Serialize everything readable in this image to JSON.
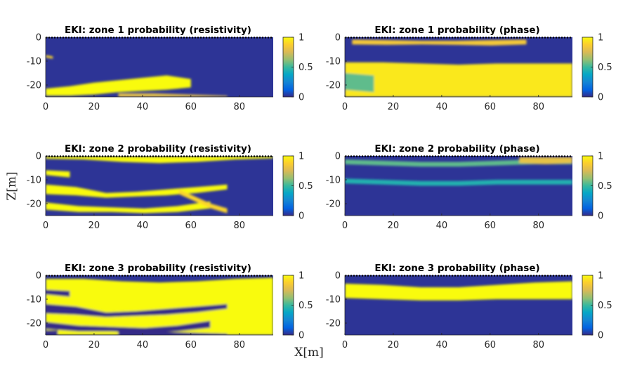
{
  "figure": {
    "xlabel": "X[m]",
    "ylabel": "Z[m]"
  },
  "colors": {
    "low": "#3e26a8",
    "mid": "#12bec0",
    "high": "#f9fb0e"
  },
  "chart_data": [
    {
      "type": "heatmap",
      "title": "EKI: zone 1 probability (resistivity)",
      "x_range": [
        0,
        94
      ],
      "y_range": [
        -25,
        0
      ],
      "x_ticks": [
        "0",
        "20",
        "40",
        "60",
        "80"
      ],
      "y_ticks": [
        "0",
        "-10",
        "-20"
      ],
      "colorbar": {
        "range": [
          0,
          1
        ],
        "ticks": [
          "0",
          "0.5",
          "1"
        ]
      },
      "regions": [
        {
          "shape": "band",
          "x": [
            0,
            60
          ],
          "top": [
            -21.5,
            -20.5,
            -19,
            -18,
            -17,
            -16,
            -17.5
          ],
          "bottom": [
            -24.5,
            -24.5,
            -24,
            -23,
            -22.5,
            -22,
            -21
          ],
          "value": 1.0
        },
        {
          "shape": "band",
          "x": [
            30,
            75
          ],
          "top": [
            -23.5,
            -23.5,
            -24,
            -24.5
          ],
          "bottom": [
            -25,
            -25,
            -25,
            -25
          ],
          "value": 0.8
        },
        {
          "shape": "band",
          "x": [
            0,
            3
          ],
          "top": [
            -7.5,
            -8
          ],
          "bottom": [
            -8.5,
            -9
          ],
          "value": 0.9
        }
      ]
    },
    {
      "type": "heatmap",
      "title": "EKI: zone 1 probability (phase)",
      "x_range": [
        0,
        94
      ],
      "y_range": [
        -25,
        0
      ],
      "x_ticks": [
        "0",
        "20",
        "40",
        "60",
        "80"
      ],
      "y_ticks": [
        "0",
        "-10",
        "-20"
      ],
      "colorbar": {
        "range": [
          0,
          1
        ],
        "ticks": [
          "0",
          "0.5",
          "1"
        ]
      },
      "regions": [
        {
          "shape": "band",
          "x": [
            0,
            94
          ],
          "top": [
            -10.5,
            -10.5,
            -11,
            -11.5,
            -11,
            -11,
            -11
          ],
          "bottom": [
            -25,
            -25,
            -25,
            -25,
            -25,
            -25,
            -25
          ],
          "value": 0.95
        },
        {
          "shape": "band",
          "x": [
            3,
            75
          ],
          "top": [
            -1,
            -1.2,
            -1.5,
            -1.5,
            -1.2,
            -1
          ],
          "bottom": [
            -3,
            -3.2,
            -3,
            -3.2,
            -3.5,
            -3
          ],
          "value": 0.85
        },
        {
          "shape": "band",
          "x": [
            0,
            12
          ],
          "top": [
            -15,
            -16
          ],
          "bottom": [
            -22,
            -23
          ],
          "value": 0.55
        }
      ]
    },
    {
      "type": "heatmap",
      "title": "EKI: zone 2 probability (resistivity)",
      "x_range": [
        0,
        94
      ],
      "y_range": [
        -25,
        0
      ],
      "x_ticks": [
        "0",
        "20",
        "40",
        "60",
        "80"
      ],
      "y_ticks": [
        "0",
        "-10",
        "-20"
      ],
      "colorbar": {
        "range": [
          0,
          1
        ],
        "ticks": [
          "0",
          "0.5",
          "1"
        ]
      },
      "regions": [
        {
          "shape": "band",
          "x": [
            0,
            94
          ],
          "top": [
            -0.2,
            -0.2,
            -0.2,
            -0.2,
            -0.2,
            -0.2,
            -0.2
          ],
          "bottom": [
            -1.2,
            -1.5,
            -2.5,
            -3,
            -2.5,
            -1.5,
            -1
          ],
          "value": 1.0
        },
        {
          "shape": "band",
          "x": [
            0,
            10
          ],
          "top": [
            -6,
            -6.5
          ],
          "bottom": [
            -8,
            -9
          ],
          "value": 1.0
        },
        {
          "shape": "band",
          "x": [
            0,
            75
          ],
          "top": [
            -12,
            -13,
            -15.5,
            -15,
            -14,
            -13,
            -12
          ],
          "bottom": [
            -16,
            -16.5,
            -17.5,
            -17,
            -16.5,
            -15.5,
            -14
          ],
          "value": 1.0
        },
        {
          "shape": "band",
          "x": [
            0,
            68
          ],
          "top": [
            -19.5,
            -21,
            -21.5,
            -22,
            -21,
            -19
          ],
          "bottom": [
            -22.5,
            -23.5,
            -23.5,
            -24,
            -23.5,
            -22
          ],
          "value": 1.0
        },
        {
          "shape": "band",
          "x": [
            55,
            75
          ],
          "top": [
            -14,
            -17,
            -20,
            -22
          ],
          "bottom": [
            -16,
            -19,
            -22,
            -24
          ],
          "value": 0.9
        }
      ]
    },
    {
      "type": "heatmap",
      "title": "EKI: zone 2 probability (phase)",
      "x_range": [
        0,
        94
      ],
      "y_range": [
        -25,
        0
      ],
      "x_ticks": [
        "0",
        "20",
        "40",
        "60",
        "80"
      ],
      "y_ticks": [
        "0",
        "-10",
        "-20"
      ],
      "colorbar": {
        "range": [
          0,
          1
        ],
        "ticks": [
          "0",
          "0.5",
          "1"
        ]
      },
      "regions": [
        {
          "shape": "band",
          "x": [
            0,
            94
          ],
          "top": [
            -1.5,
            -2,
            -2.5,
            -2.5,
            -2,
            -1.5,
            -1.5
          ],
          "bottom": [
            -3.5,
            -4,
            -4.5,
            -4.5,
            -4,
            -3.5,
            -3.5
          ],
          "value": 0.55
        },
        {
          "shape": "band",
          "x": [
            0,
            94
          ],
          "top": [
            -9.5,
            -10,
            -10.5,
            -10.5,
            -10,
            -10,
            -10
          ],
          "bottom": [
            -11.5,
            -12,
            -12.5,
            -12.5,
            -12,
            -12,
            -12
          ],
          "value": 0.45
        },
        {
          "shape": "band",
          "x": [
            72,
            94
          ],
          "top": [
            -0.5,
            -0.5,
            -0.5
          ],
          "bottom": [
            -3,
            -3.5,
            -3
          ],
          "value": 0.8
        }
      ]
    },
    {
      "type": "heatmap",
      "title": "EKI: zone 3 probability (resistivity)",
      "x_range": [
        0,
        94
      ],
      "y_range": [
        -25,
        0
      ],
      "x_ticks": [
        "0",
        "20",
        "40",
        "60",
        "80"
      ],
      "y_ticks": [
        "0",
        "-10",
        "-20"
      ],
      "colorbar": {
        "range": [
          0,
          1
        ],
        "ticks": [
          "0",
          "0.5",
          "1"
        ]
      },
      "regions": [
        {
          "shape": "band",
          "x": [
            0,
            94
          ],
          "top": [
            -1.5,
            -1.5,
            -2.5,
            -3,
            -2.5,
            -1.5,
            -1
          ],
          "bottom": [
            -25,
            -25,
            -25,
            -25,
            -25,
            -25,
            -25
          ],
          "value": 1.0
        },
        {
          "shape": "band",
          "x": [
            0,
            10
          ],
          "top": [
            -6,
            -6.5
          ],
          "bottom": [
            -8,
            -9
          ],
          "value": 0.0
        },
        {
          "shape": "band",
          "x": [
            0,
            75
          ],
          "top": [
            -12,
            -13,
            -15.5,
            -15,
            -14,
            -13,
            -12
          ],
          "bottom": [
            -16,
            -16.5,
            -17.5,
            -17,
            -16.5,
            -15.5,
            -14
          ],
          "value": 0.0
        },
        {
          "shape": "band",
          "x": [
            0,
            68
          ],
          "top": [
            -19.5,
            -21,
            -21.5,
            -22,
            -21,
            -19
          ],
          "bottom": [
            -22.5,
            -23.5,
            -23.5,
            -24,
            -23.5,
            -22
          ],
          "value": 0.0
        },
        {
          "shape": "band",
          "x": [
            30,
            75
          ],
          "top": [
            -23.5,
            -23.5,
            -24,
            -24.5
          ],
          "bottom": [
            -25,
            -25,
            -25,
            -25
          ],
          "value": 0.0
        },
        {
          "shape": "band",
          "x": [
            0,
            5
          ],
          "top": [
            -23,
            -23
          ],
          "bottom": [
            -25,
            -25
          ],
          "value": 0.0
        }
      ]
    },
    {
      "type": "heatmap",
      "title": "EKI: zone 3 probability (phase)",
      "x_range": [
        0,
        94
      ],
      "y_range": [
        -25,
        0
      ],
      "x_ticks": [
        "0",
        "20",
        "40",
        "60",
        "80"
      ],
      "y_ticks": [
        "0",
        "-10",
        "-20"
      ],
      "colorbar": {
        "range": [
          0,
          1
        ],
        "ticks": [
          "0",
          "0.5",
          "1"
        ]
      },
      "regions": [
        {
          "shape": "band",
          "x": [
            0,
            94
          ],
          "top": [
            -3.5,
            -4,
            -5,
            -5,
            -4,
            -3,
            -2.5
          ],
          "bottom": [
            -9.5,
            -10,
            -10.5,
            -10.5,
            -10,
            -10,
            -10
          ],
          "value": 1.0
        }
      ]
    }
  ]
}
